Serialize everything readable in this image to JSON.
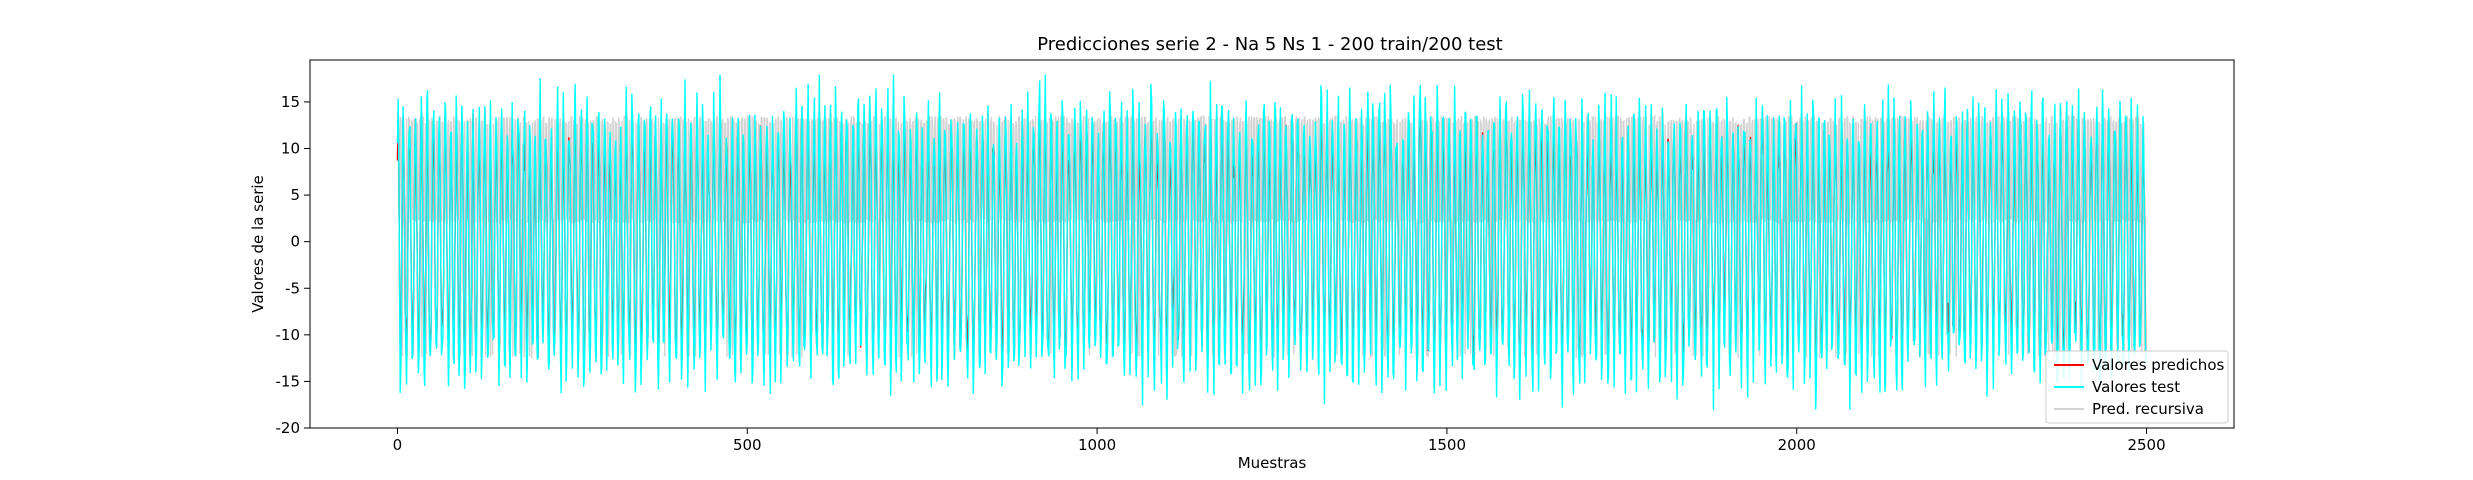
{
  "chart_data": {
    "type": "line",
    "title": "Predicciones serie 2 - Na 5 Ns 1 - 200 train/200 test",
    "xlabel": "Muestras",
    "ylabel": "Valores de la serie",
    "xlim": [
      -125,
      2625
    ],
    "ylim": [
      -20,
      19.5
    ],
    "xticks": [
      0,
      500,
      1000,
      1500,
      2000,
      2500
    ],
    "yticks": [
      -20,
      -15,
      -10,
      -5,
      0,
      5,
      10,
      15
    ],
    "grid": false,
    "legend_position": "lower-right",
    "n_points": 2500,
    "series": [
      {
        "name": "Pred. recursiva",
        "color": "#d3d3d3",
        "pattern": "oscillates between approx 2 and 13.5 with occasional dips to -12",
        "min": -12.5,
        "max": 13.5
      },
      {
        "name": "Valores test",
        "color": "#00ffff",
        "pattern": "irregular oscillation between approx -18 and 18",
        "min": -18.2,
        "max": 18.0
      },
      {
        "name": "Valores predichos",
        "color": "#ff0000",
        "pattern": "follows test values with offsets",
        "min": -12.5,
        "max": 14.2
      }
    ],
    "legend": [
      {
        "label": "Valores predichos",
        "color": "#ff0000"
      },
      {
        "label": "Valores test",
        "color": "#00ffff"
      },
      {
        "label": "Pred. recursiva",
        "color": "#d3d3d3"
      }
    ]
  }
}
